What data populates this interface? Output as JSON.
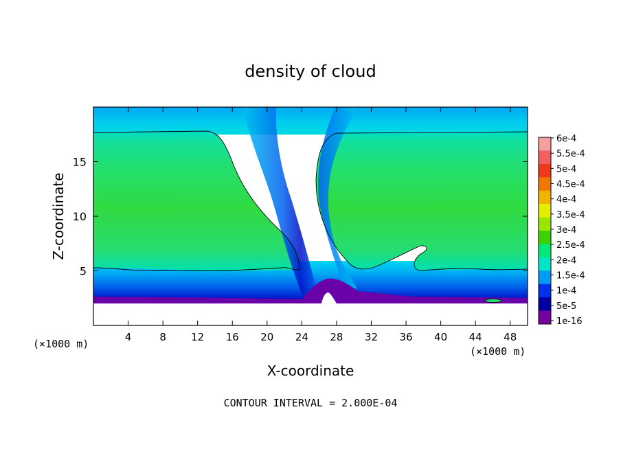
{
  "chart_data": {
    "type": "heatmap",
    "title": "density of cloud",
    "xlabel": "X-coordinate",
    "ylabel": "Z-coordinate",
    "x_unit_left": "(×1000 m)",
    "x_unit_right": "(×1000 m)",
    "footer": "CONTOUR INTERVAL = 2.000E-04",
    "xlim": [
      0,
      50
    ],
    "ylim": [
      0,
      20
    ],
    "x_ticks": [
      "4",
      "8",
      "12",
      "16",
      "20",
      "24",
      "28",
      "32",
      "36",
      "40",
      "44",
      "48"
    ],
    "x_tick_values": [
      4,
      8,
      12,
      16,
      20,
      24,
      28,
      32,
      36,
      40,
      44,
      48
    ],
    "y_ticks": [
      "5",
      "10",
      "15"
    ],
    "y_tick_values": [
      5,
      10,
      15
    ],
    "colorbar": {
      "labels": [
        "6e-4",
        "5.5e-4",
        "5e-4",
        "4.5e-4",
        "4e-4",
        "3.5e-4",
        "3e-4",
        "2.5e-4",
        "2e-4",
        "1.5e-4",
        "1e-4",
        "5e-5",
        "1e-16"
      ],
      "colors": [
        "#f4a0a0",
        "#f06060",
        "#ee3a1a",
        "#f07800",
        "#f0b400",
        "#e6ee00",
        "#9be600",
        "#3cd200",
        "#00e878",
        "#00e4c8",
        "#009cf4",
        "#0030e8",
        "#0000a0",
        "#7800a0"
      ]
    },
    "cloud_base_z": 2.0,
    "cloud_layer_top_z": 17.8,
    "cloud_layer_bottom_z_left": 5.2,
    "cloud_layer_bottom_z_right": 5.0,
    "clear_gap_x": [
      24.5,
      29.5
    ]
  }
}
